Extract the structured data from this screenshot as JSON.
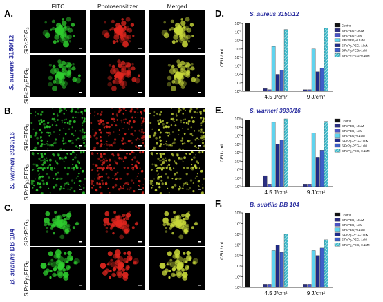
{
  "microscopy": {
    "column_headers": [
      "FITC",
      "Photosensitizer",
      "Merged"
    ],
    "row_labels": [
      "SiPcPEG₂",
      "SiPcPy₂PEG₂"
    ],
    "rows": [
      {
        "letter": "A.",
        "species_italic": "S. aureus",
        "species_strain": "3150/12"
      },
      {
        "letter": "B.",
        "species_italic": "S. warneri",
        "species_strain": "3930/16"
      },
      {
        "letter": "C.",
        "species_italic": "B. subtilis",
        "species_strain": "DB 104"
      }
    ]
  },
  "colors": {
    "fitc": "#2ecc2e",
    "photosensitizer": "#e0261f",
    "merged": "#c8d93a",
    "species_label": "#2b2fa0"
  },
  "chart_data": [
    {
      "letter": "D.",
      "title": "S. aureus 3150/12",
      "type": "bar",
      "scale": "log",
      "ylabel": "CFU / mL",
      "ylim": [
        1,
        100000000
      ],
      "ytick_powers": [
        0,
        1,
        2,
        3,
        4,
        5,
        6,
        7,
        8
      ],
      "categories": [
        "4.5 J/cm²",
        "9 J/cm²"
      ],
      "legend": [
        "Control",
        "SiPcPEG₂-10uM",
        "SiPcPEG₂-1uM",
        "SiPcPEG₂-0.1uM",
        "SiPcPy₂PEG₂-10uM",
        "SiPcPy₂PEG₂-1uM",
        "SiPcPy₂PEG₂-0.1uM"
      ],
      "control": 100000000,
      "groups": [
        [
          null,
          2,
          1.5,
          200000,
          100,
          300,
          20000000
        ],
        [
          null,
          1.5,
          1.5,
          100000,
          200,
          500,
          30000000
        ]
      ]
    },
    {
      "letter": "E.",
      "title": "S. warneri 3930/16",
      "type": "bar",
      "scale": "log",
      "ylabel": "CFU / mL",
      "ylim": [
        10,
        1000000000
      ],
      "ytick_powers": [
        1,
        2,
        3,
        4,
        5,
        6,
        7,
        8,
        9
      ],
      "categories": [
        "4.5 J/cm²",
        "9 J/cm²"
      ],
      "legend": [
        "Control",
        "SiPcPEG₂-10uM",
        "SiPcPEG₂-1uM",
        "SiPcPEG₂-0.1uM",
        "SiPcPy₂PEG₂-10uM",
        "SiPcPy₂PEG₂-1uM",
        "SiPcPy₂PEG₂-0.1uM"
      ],
      "control": 700000000,
      "groups": [
        [
          null,
          200,
          20,
          400000000,
          1000000,
          3000000,
          1000000000
        ],
        [
          null,
          20,
          20,
          20000000,
          30000,
          200000,
          500000000
        ]
      ]
    },
    {
      "letter": "F.",
      "title": "B. subtilis DB 104",
      "type": "bar",
      "scale": "log",
      "ylabel": "CFU / mL",
      "ylim": [
        10,
        100000000
      ],
      "ytick_powers": [
        1,
        2,
        3,
        4,
        5,
        6,
        7,
        8
      ],
      "categories": [
        "4.5 J/cm²",
        "9 J/cm²"
      ],
      "legend": [
        "Control",
        "SiPcPEG₂-10uM",
        "SiPcPEG₂-1uM",
        "SiPcPEG₂-0.1uM",
        "SiPcPy₂PEG₂-10uM",
        "SiPcPy₂PEG₂-1uM",
        "SiPcPy₂PEG₂-0.1uM"
      ],
      "control": 100000000,
      "groups": [
        [
          null,
          20,
          20,
          30000,
          100000,
          20000,
          1000000
        ],
        [
          null,
          20,
          20,
          30000,
          10000,
          50000,
          300000
        ]
      ]
    }
  ]
}
